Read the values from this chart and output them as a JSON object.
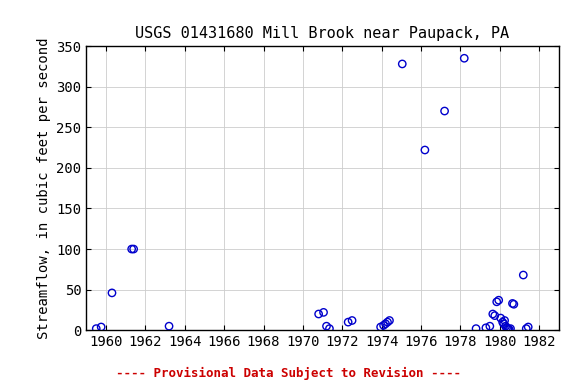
{
  "title": "USGS 01431680 Mill Brook near Paupack, PA",
  "ylabel": "Streamflow, in cubic feet per second",
  "xlim": [
    1959,
    1983
  ],
  "ylim": [
    0,
    350
  ],
  "xticks": [
    1960,
    1962,
    1964,
    1966,
    1968,
    1970,
    1972,
    1974,
    1976,
    1978,
    1980,
    1982
  ],
  "yticks": [
    0,
    50,
    100,
    150,
    200,
    250,
    300,
    350
  ],
  "footnote": "---- Provisional Data Subject to Revision ----",
  "footnote_color": "#cc0000",
  "marker_color": "#0000cc",
  "background_color": "#ffffff",
  "title_fontsize": 11,
  "axis_fontsize": 10,
  "tick_fontsize": 10,
  "data_points": [
    [
      1959.5,
      2
    ],
    [
      1959.75,
      4
    ],
    [
      1960.3,
      46
    ],
    [
      1961.3,
      100
    ],
    [
      1961.4,
      100
    ],
    [
      1963.2,
      5
    ],
    [
      1970.8,
      20
    ],
    [
      1971.05,
      22
    ],
    [
      1971.2,
      5
    ],
    [
      1971.35,
      2
    ],
    [
      1972.3,
      10
    ],
    [
      1972.5,
      12
    ],
    [
      1973.95,
      4
    ],
    [
      1974.1,
      6
    ],
    [
      1974.2,
      8
    ],
    [
      1974.3,
      10
    ],
    [
      1974.4,
      12
    ],
    [
      1975.05,
      328
    ],
    [
      1976.2,
      222
    ],
    [
      1977.2,
      270
    ],
    [
      1978.2,
      335
    ],
    [
      1978.8,
      2
    ],
    [
      1979.3,
      3
    ],
    [
      1979.5,
      5
    ],
    [
      1979.65,
      20
    ],
    [
      1979.75,
      18
    ],
    [
      1979.85,
      35
    ],
    [
      1979.95,
      37
    ],
    [
      1980.05,
      15
    ],
    [
      1980.15,
      10
    ],
    [
      1980.2,
      8
    ],
    [
      1980.25,
      12
    ],
    [
      1980.3,
      5
    ],
    [
      1980.35,
      3
    ],
    [
      1980.42,
      2
    ],
    [
      1980.48,
      1
    ],
    [
      1980.55,
      2
    ],
    [
      1980.65,
      33
    ],
    [
      1980.72,
      32
    ],
    [
      1981.2,
      68
    ],
    [
      1981.35,
      2
    ],
    [
      1981.45,
      4
    ]
  ]
}
